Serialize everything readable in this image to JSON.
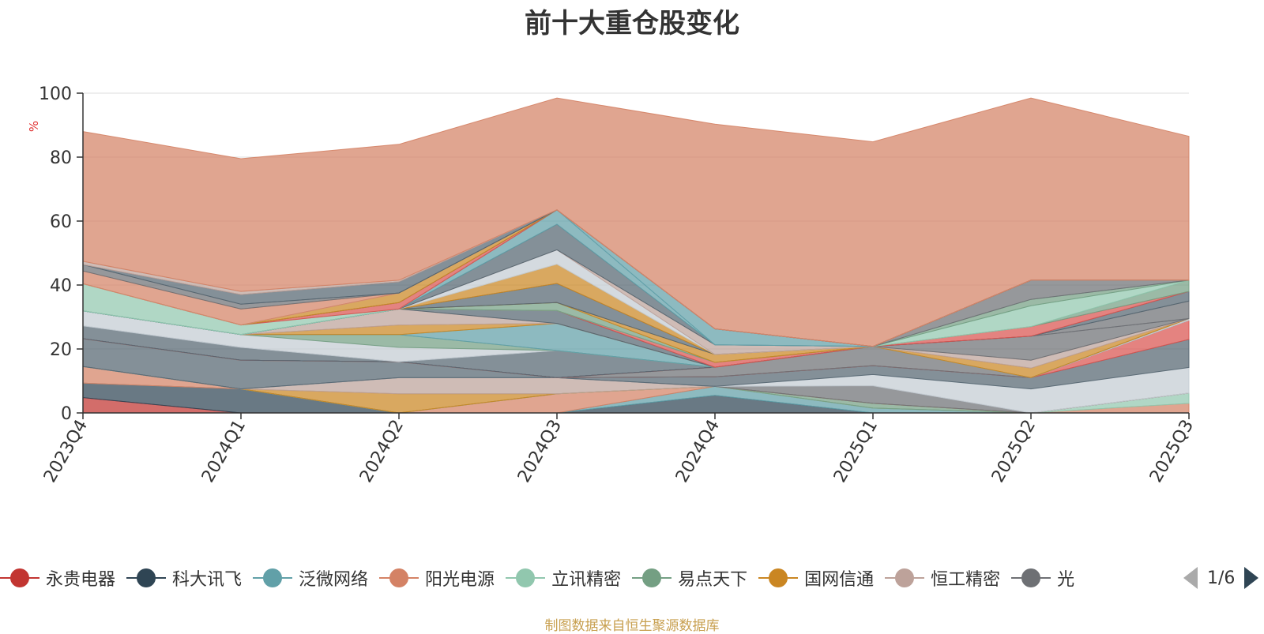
{
  "chart_data": {
    "type": "area",
    "title": "前十大重仓股变化",
    "ylabel": "%",
    "ylim": [
      0,
      100
    ],
    "yticks": [
      0,
      20,
      40,
      60,
      80,
      100
    ],
    "grid": true,
    "stacked": true,
    "legend_position": "bottom",
    "x": [
      "2023Q4",
      "2024Q1",
      "2024Q2",
      "2024Q3",
      "2024Q4",
      "2025Q1",
      "2025Q2",
      "2025Q3"
    ],
    "series": [
      {
        "name": "永贵电器",
        "color": "#c23531",
        "values": [
          4.8,
          0,
          0,
          0,
          0,
          0,
          0,
          0
        ]
      },
      {
        "name": "科大讯飞",
        "color": "#2f4554",
        "values": [
          4.5,
          7.5,
          0,
          0,
          5.5,
          0,
          0,
          0
        ]
      },
      {
        "name": "泛微网络",
        "color": "#61a0a8",
        "values": [
          0,
          0,
          0,
          0,
          2.8,
          1.5,
          0,
          0
        ]
      },
      {
        "name": "阳光电源",
        "color": "#d48265",
        "values": [
          5.2,
          0,
          0,
          6.0,
          0,
          0,
          0,
          3.0
        ]
      },
      {
        "name": "立讯精密",
        "color": "#91c7ae",
        "values": [
          0,
          0,
          0,
          0,
          0,
          0,
          0,
          3.2
        ]
      },
      {
        "name": "易点天下",
        "color": "#749f83",
        "values": [
          0,
          0,
          0,
          0,
          0,
          1.5,
          0,
          0
        ]
      },
      {
        "name": "国网信通",
        "color": "#ca8622",
        "values": [
          0,
          0,
          6.0,
          0,
          0,
          0,
          0,
          0
        ]
      },
      {
        "name": "恒工精密",
        "color": "#bda29a",
        "values": [
          0,
          0,
          5.0,
          5.0,
          0,
          0,
          0,
          0
        ]
      },
      {
        "values": [
          0,
          0,
          0,
          0,
          0,
          5.5,
          0,
          0
        ],
        "color": "#6e7074"
      },
      {
        "values": [
          0,
          0,
          0,
          0,
          0,
          3.5,
          7.5,
          8.0
        ],
        "color": "#c4ccd3"
      },
      {
        "values": [
          8.7,
          9.0,
          5.0,
          0,
          3.0,
          2.8,
          3.5,
          8.8
        ],
        "color": "#546570"
      },
      {
        "values": [
          0,
          0,
          0,
          0,
          0,
          0,
          0,
          6.0
        ],
        "color": "#d9534f"
      },
      {
        "values": [
          0,
          0,
          0,
          0,
          3.0,
          6.0,
          0,
          0
        ],
        "color": "#6e7074"
      },
      {
        "values": [
          0,
          0,
          0,
          0,
          0,
          0,
          0,
          0.5
        ],
        "color": "#c4ccd3"
      },
      {
        "values": [
          0,
          0,
          0,
          0,
          0,
          0,
          0,
          0
        ],
        "color": "#61a0a8"
      },
      {
        "values": [
          0,
          0,
          0,
          0,
          0,
          0,
          3.0,
          0
        ],
        "color": "#ca8622"
      },
      {
        "values": [
          0,
          0,
          0,
          0,
          0,
          0,
          2.5,
          0
        ],
        "color": "#bda29a"
      },
      {
        "values": [
          0,
          0,
          0,
          0,
          0,
          0,
          7.5,
          0
        ],
        "color": "#6e7074"
      },
      {
        "values": [
          0,
          0,
          0,
          0,
          0,
          0,
          0,
          5.5
        ],
        "color": "#6e7074"
      },
      {
        "values": [
          0,
          0,
          0,
          0,
          0,
          0,
          0,
          3.0
        ],
        "color": "#546570"
      },
      {
        "values": [
          0,
          0,
          0,
          0,
          0,
          0,
          3.0,
          0
        ],
        "color": "#d9534f"
      },
      {
        "values": [
          0,
          0,
          0,
          0,
          0,
          0,
          0,
          3.5
        ],
        "color": "#749f83"
      },
      {
        "values": [
          0,
          0,
          0,
          0,
          0,
          0,
          6.5,
          0
        ],
        "color": "#91c7ae"
      },
      {
        "values": [
          0,
          0,
          0,
          0,
          0,
          0,
          2.0,
          0
        ],
        "color": "#749f83"
      },
      {
        "values": [
          0,
          0,
          0,
          0,
          0,
          0,
          6.0,
          0
        ],
        "color": "#6e7074"
      },
      {
        "values": [
          0,
          0,
          0,
          0,
          0,
          0,
          0,
          0
        ],
        "color": "#c4ccd3"
      },
      {
        "values": [
          0,
          0,
          0,
          0,
          0,
          0,
          0,
          0
        ],
        "color": "#d9534f"
      },
      {
        "values": [
          4.0,
          4.0,
          0,
          8.5,
          0,
          0,
          0,
          0
        ],
        "color": "#546570"
      },
      {
        "values": [
          4.7,
          4.0,
          4.5,
          0,
          0,
          0,
          0,
          0
        ],
        "color": "#c4ccd3"
      },
      {
        "values": [
          0,
          0,
          4.0,
          0,
          0,
          0,
          0,
          0
        ],
        "color": "#749f83"
      },
      {
        "values": [
          0,
          0,
          0,
          8.5,
          0,
          0,
          0,
          0
        ],
        "color": "#61a0a8"
      },
      {
        "values": [
          0,
          0,
          3.0,
          0,
          0,
          0,
          0,
          0
        ],
        "color": "#ca8622"
      },
      {
        "values": [
          0,
          0,
          5.0,
          0,
          0,
          0,
          0,
          0
        ],
        "color": "#bda29a"
      },
      {
        "values": [
          0,
          0,
          0,
          4.0,
          0,
          0,
          0,
          0
        ],
        "color": "#546570"
      },
      {
        "values": [
          0,
          0,
          0,
          0,
          1.5,
          0,
          0,
          0
        ],
        "color": "#d9534f"
      },
      {
        "values": [
          0,
          0,
          0,
          0,
          0,
          0,
          0,
          0
        ],
        "color": "#91c7ae"
      },
      {
        "values": [
          0,
          0,
          0,
          2.5,
          0,
          0,
          0,
          0
        ],
        "color": "#749f83"
      },
      {
        "values": [
          0,
          0,
          0,
          0,
          2.5,
          0,
          0,
          0
        ],
        "color": "#ca8622"
      },
      {
        "values": [
          0,
          0,
          0,
          6.0,
          0,
          0,
          0,
          0
        ],
        "color": "#546570"
      },
      {
        "values": [
          0,
          0,
          0,
          6.0,
          0,
          0,
          0,
          0
        ],
        "color": "#ca8622"
      },
      {
        "values": [
          0,
          0,
          0,
          4.5,
          0,
          0,
          0,
          0
        ],
        "color": "#c4ccd3"
      },
      {
        "values": [
          0,
          0,
          0,
          0,
          3.0,
          0,
          0,
          0
        ],
        "color": "#bda29a"
      },
      {
        "values": [
          0,
          0,
          0,
          8.0,
          0,
          0,
          0,
          0
        ],
        "color": "#546570"
      },
      {
        "values": [
          0,
          0,
          0,
          4.5,
          0,
          0,
          0,
          0
        ],
        "color": "#61a0a8"
      },
      {
        "values": [
          0,
          0,
          0,
          0,
          5.0,
          0,
          0,
          0
        ],
        "color": "#61a0a8"
      },
      {
        "values": [
          8.5,
          3.0,
          0,
          0,
          0,
          0,
          0,
          0
        ],
        "color": "#91c7ae"
      },
      {
        "values": [
          0,
          0,
          2.0,
          0,
          0,
          0,
          0,
          0
        ],
        "color": "#d9534f"
      },
      {
        "values": [
          0,
          0,
          0,
          0,
          0,
          0,
          0,
          0
        ],
        "color": "#6e7074"
      },
      {
        "values": [
          0,
          0,
          3.0,
          0,
          0,
          0,
          0,
          0
        ],
        "color": "#ca8622"
      },
      {
        "values": [
          0,
          0,
          0,
          0,
          0,
          0,
          0,
          0
        ],
        "color": "#c4ccd3"
      },
      {
        "values": [
          4.0,
          5.0,
          0,
          0,
          0,
          0,
          0,
          0
        ],
        "color": "#d48265"
      },
      {
        "values": [
          2.0,
          1.5,
          0,
          0,
          0,
          0,
          0,
          0
        ],
        "color": "#6e7074"
      },
      {
        "values": [
          0,
          3.0,
          3.5,
          0,
          0,
          0,
          0,
          0
        ],
        "color": "#546570"
      },
      {
        "values": [
          1.0,
          1.0,
          0.5,
          0,
          0,
          0,
          0,
          0
        ],
        "color": "#bda29a"
      },
      {
        "values": [
          40.6,
          41.5,
          42.5,
          35.0,
          64.0,
          64.0,
          57.0,
          45.0
        ],
        "color": "#d48265"
      }
    ]
  },
  "legend": {
    "items": [
      {
        "label": "永贵电器",
        "color": "#c23531"
      },
      {
        "label": "科大讯飞",
        "color": "#2f4554"
      },
      {
        "label": "泛微网络",
        "color": "#61a0a8"
      },
      {
        "label": "阳光电源",
        "color": "#d48265"
      },
      {
        "label": "立讯精密",
        "color": "#91c7ae"
      },
      {
        "label": "易点天下",
        "color": "#749f83"
      },
      {
        "label": "国网信通",
        "color": "#ca8622"
      },
      {
        "label": "恒工精密",
        "color": "#bda29a"
      },
      {
        "label": "光",
        "color": "#6e7074"
      }
    ],
    "page_indicator": "1/6"
  },
  "footer": {
    "source_note": "制图数据来自恒生聚源数据库"
  }
}
